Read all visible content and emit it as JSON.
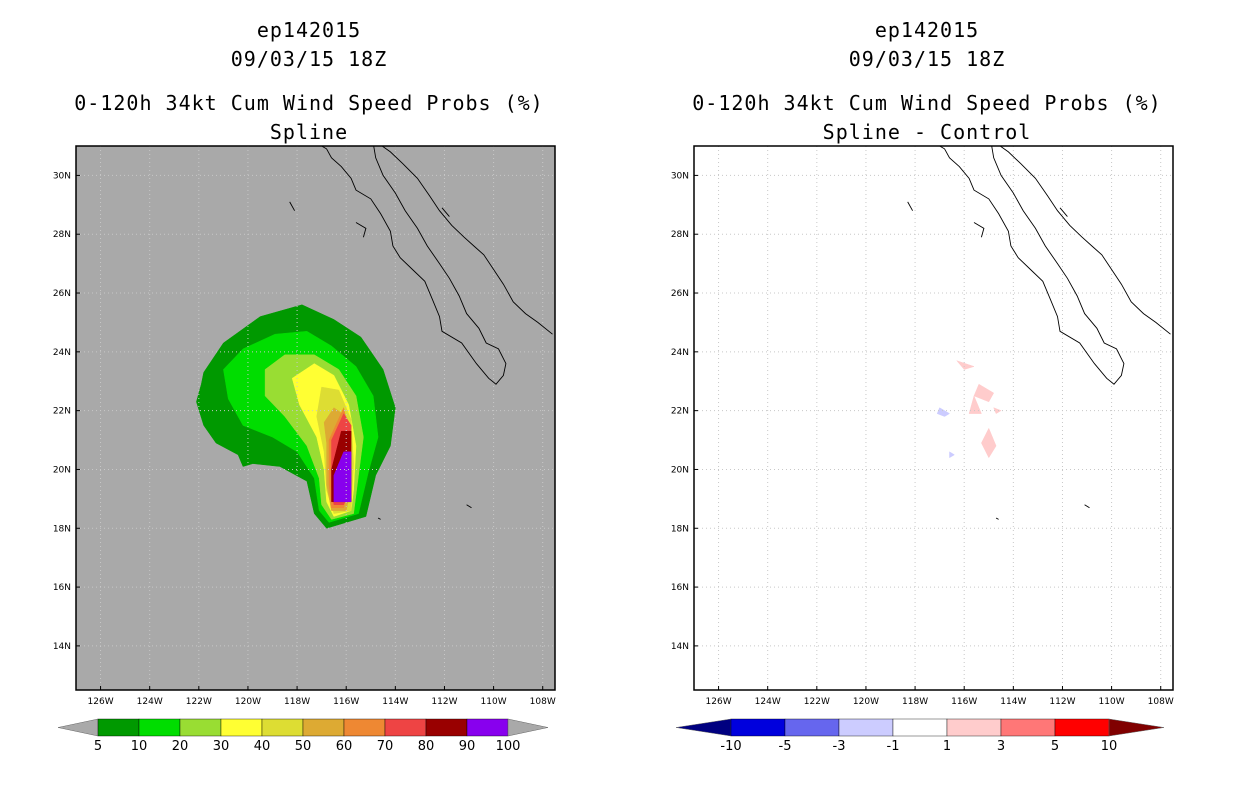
{
  "chart_data": [
    {
      "type": "heatmap",
      "title_lines": [
        "ep142015",
        "09/03/15 18Z",
        "0-120h 34kt Cum Wind Speed Probs (%)",
        "Spline"
      ],
      "x_ticks": [
        "126W",
        "124W",
        "122W",
        "120W",
        "118W",
        "116W",
        "114W",
        "112W",
        "110W",
        "108W"
      ],
      "y_ticks": [
        "30N",
        "28N",
        "26N",
        "24N",
        "22N",
        "20N",
        "18N",
        "16N",
        "14N"
      ],
      "x_range_lon": [
        -127,
        -107.5
      ],
      "y_range_lat": [
        12.5,
        31
      ],
      "background": "#a9a9a9",
      "colorbar": {
        "labels": [
          "5",
          "10",
          "20",
          "30",
          "40",
          "50",
          "60",
          "70",
          "80",
          "90",
          "100"
        ],
        "colors": [
          "#009900",
          "#00dd00",
          "#99dd33",
          "#ffff33",
          "#dddd33",
          "#ddaa33",
          "#ee8833",
          "#ee4444",
          "#990000",
          "#8800ee"
        ],
        "under_color": "#a9a9a9",
        "over_color": "#a9a9a9"
      },
      "contour_levels": [
        {
          "min": 5,
          "color": "#009900",
          "poly": [
            [
              -121.8,
              23.3
            ],
            [
              -121,
              24.3
            ],
            [
              -119.5,
              25.2
            ],
            [
              -117.8,
              25.6
            ],
            [
              -116.5,
              25.1
            ],
            [
              -115.4,
              24.5
            ],
            [
              -114.5,
              23.4
            ],
            [
              -114,
              22.1
            ],
            [
              -114.2,
              20.8
            ],
            [
              -114.8,
              19.8
            ],
            [
              -115.2,
              18.4
            ],
            [
              -116.8,
              18
            ],
            [
              -117.3,
              18.5
            ],
            [
              -117.6,
              19.6
            ],
            [
              -118.7,
              20.1
            ],
            [
              -119.8,
              20.2
            ],
            [
              -120.2,
              20.1
            ],
            [
              -120.4,
              20.5
            ],
            [
              -121.3,
              20.9
            ],
            [
              -121.8,
              21.5
            ],
            [
              -122.1,
              22.3
            ],
            [
              -121.9,
              22.9
            ]
          ]
        },
        {
          "min": 10,
          "color": "#00dd00",
          "poly": [
            [
              -121,
              23.4
            ],
            [
              -120.2,
              24.1
            ],
            [
              -118.9,
              24.6
            ],
            [
              -117.6,
              24.7
            ],
            [
              -116.6,
              24.2
            ],
            [
              -115.6,
              23.5
            ],
            [
              -114.9,
              22.5
            ],
            [
              -114.7,
              21.1
            ],
            [
              -115.1,
              19.9
            ],
            [
              -115.5,
              18.5
            ],
            [
              -116.7,
              18.2
            ],
            [
              -117.1,
              18.6
            ],
            [
              -117.3,
              19.7
            ],
            [
              -118,
              20.6
            ],
            [
              -119,
              21.1
            ],
            [
              -120.2,
              21.5
            ],
            [
              -120.8,
              22.4
            ]
          ]
        },
        {
          "min": 20,
          "color": "#99dd33",
          "poly": [
            [
              -119.3,
              23.4
            ],
            [
              -118.5,
              23.9
            ],
            [
              -117.3,
              23.9
            ],
            [
              -116.3,
              23.4
            ],
            [
              -115.6,
              22.5
            ],
            [
              -115.3,
              21.1
            ],
            [
              -115.5,
              19.8
            ],
            [
              -115.7,
              18.5
            ],
            [
              -116.6,
              18.3
            ],
            [
              -117,
              18.8
            ],
            [
              -117.1,
              19.7
            ],
            [
              -117.6,
              20.8
            ],
            [
              -118.5,
              21.8
            ],
            [
              -119.3,
              22.5
            ]
          ]
        },
        {
          "min": 30,
          "color": "#ffff33",
          "poly": [
            [
              -118.2,
              23.1
            ],
            [
              -117.3,
              23.6
            ],
            [
              -116.5,
              23.2
            ],
            [
              -115.9,
              22.2
            ],
            [
              -115.6,
              20.8
            ],
            [
              -115.7,
              19.3
            ],
            [
              -115.8,
              18.6
            ],
            [
              -116.5,
              18.4
            ],
            [
              -116.8,
              18.9
            ],
            [
              -116.9,
              20
            ],
            [
              -117.2,
              21.1
            ],
            [
              -117.9,
              22.2
            ]
          ]
        },
        {
          "min": 40,
          "color": "#dddd33",
          "poly": [
            [
              -117,
              22.8
            ],
            [
              -116.3,
              22.7
            ],
            [
              -115.8,
              21.7
            ],
            [
              -115.7,
              20.2
            ],
            [
              -115.8,
              18.6
            ],
            [
              -116.5,
              18.5
            ],
            [
              -116.8,
              19.3
            ],
            [
              -116.9,
              20.6
            ],
            [
              -117.2,
              21.8
            ]
          ]
        },
        {
          "min": 50,
          "color": "#ddaa33",
          "poly": [
            [
              -116.5,
              22.1
            ],
            [
              -116,
              21.8
            ],
            [
              -115.8,
              20.9
            ],
            [
              -115.9,
              19
            ],
            [
              -116,
              18.6
            ],
            [
              -116.6,
              18.6
            ],
            [
              -116.8,
              19.5
            ],
            [
              -116.8,
              20.9
            ],
            [
              -116.9,
              21.6
            ]
          ]
        },
        {
          "min": 60,
          "color": "#ee8833",
          "poly": [
            [
              -116.1,
              22.1
            ],
            [
              -115.9,
              21.3
            ],
            [
              -115.9,
              19.5
            ],
            [
              -116.1,
              18.7
            ],
            [
              -116.6,
              18.7
            ],
            [
              -116.7,
              19.5
            ],
            [
              -116.7,
              21
            ]
          ]
        },
        {
          "min": 70,
          "color": "#ee4444",
          "poly": [
            [
              -116.1,
              21.9
            ],
            [
              -115.8,
              21.5
            ],
            [
              -115.9,
              19.2
            ],
            [
              -116.1,
              18.8
            ],
            [
              -116.5,
              18.8
            ],
            [
              -116.6,
              19.4
            ],
            [
              -116.6,
              21
            ]
          ]
        },
        {
          "min": 80,
          "color": "#990000",
          "poly": [
            [
              -116.2,
              21.3
            ],
            [
              -115.8,
              21.3
            ],
            [
              -115.8,
              18.9
            ],
            [
              -116.6,
              18.9
            ],
            [
              -116.6,
              20
            ]
          ]
        },
        {
          "min": 90,
          "color": "#8800ee",
          "poly": [
            [
              -116.1,
              20.6
            ],
            [
              -115.8,
              20.6
            ],
            [
              -115.8,
              18.9
            ],
            [
              -116.5,
              18.9
            ],
            [
              -116.5,
              19.8
            ]
          ]
        }
      ],
      "coastlines": [
        [
          [
            -117.2,
            31.1
          ],
          [
            -116.8,
            30.9
          ],
          [
            -116.6,
            30.6
          ],
          [
            -116.2,
            30.3
          ],
          [
            -115.8,
            29.9
          ],
          [
            -115.6,
            29.5
          ],
          [
            -115,
            29.2
          ],
          [
            -114.6,
            28.7
          ],
          [
            -114.2,
            28.1
          ],
          [
            -114.1,
            27.6
          ],
          [
            -113.8,
            27.2
          ],
          [
            -113.3,
            26.8
          ],
          [
            -112.8,
            26.4
          ],
          [
            -112.5,
            25.8
          ],
          [
            -112.2,
            25.2
          ],
          [
            -112.1,
            24.7
          ],
          [
            -111.3,
            24.3
          ],
          [
            -110.7,
            23.6
          ],
          [
            -110.2,
            23.1
          ],
          [
            -109.9,
            22.9
          ],
          [
            -109.6,
            23.2
          ],
          [
            -109.5,
            23.6
          ],
          [
            -109.8,
            24.1
          ],
          [
            -110.3,
            24.3
          ],
          [
            -110.6,
            24.8
          ],
          [
            -111.1,
            25.3
          ],
          [
            -111.4,
            25.9
          ],
          [
            -111.8,
            26.5
          ],
          [
            -112.2,
            27
          ],
          [
            -112.7,
            27.6
          ],
          [
            -113.1,
            28.2
          ],
          [
            -113.6,
            28.8
          ],
          [
            -114,
            29.4
          ],
          [
            -114.5,
            30
          ],
          [
            -114.8,
            30.6
          ],
          [
            -114.9,
            31.1
          ]
        ],
        [
          [
            -114.7,
            31.1
          ],
          [
            -114.2,
            30.8
          ],
          [
            -113.7,
            30.4
          ],
          [
            -113.1,
            29.9
          ],
          [
            -112.6,
            29.3
          ],
          [
            -112.2,
            28.8
          ],
          [
            -111.7,
            28.3
          ],
          [
            -111.2,
            27.9
          ],
          [
            -110.8,
            27.6
          ],
          [
            -110.4,
            27.3
          ],
          [
            -110,
            26.8
          ],
          [
            -109.6,
            26.3
          ],
          [
            -109.2,
            25.7
          ],
          [
            -108.7,
            25.3
          ],
          [
            -108.2,
            25
          ],
          [
            -107.6,
            24.6
          ]
        ],
        [
          [
            -115.6,
            28.4
          ],
          [
            -115.2,
            28.2
          ],
          [
            -115.3,
            27.9
          ]
        ],
        [
          [
            -118.3,
            29.1
          ],
          [
            -118.1,
            28.8
          ]
        ],
        [
          [
            -112.1,
            28.9
          ],
          [
            -111.8,
            28.6
          ]
        ],
        [
          [
            -111.1,
            18.8
          ],
          [
            -110.9,
            18.7
          ]
        ],
        [
          [
            -114.7,
            18.35
          ],
          [
            -114.6,
            18.3
          ]
        ]
      ]
    },
    {
      "type": "heatmap",
      "title_lines": [
        "ep142015",
        "09/03/15 18Z",
        "0-120h 34kt Cum Wind Speed Probs (%)",
        "Spline - Control"
      ],
      "x_ticks": [
        "126W",
        "124W",
        "122W",
        "120W",
        "118W",
        "116W",
        "114W",
        "112W",
        "110W",
        "108W"
      ],
      "y_ticks": [
        "30N",
        "28N",
        "26N",
        "24N",
        "22N",
        "20N",
        "18N",
        "16N",
        "14N"
      ],
      "x_range_lon": [
        -127,
        -107.5
      ],
      "y_range_lat": [
        12.5,
        31
      ],
      "background": "#ffffff",
      "colorbar": {
        "labels": [
          "-10",
          "-5",
          "-3",
          "-1",
          "1",
          "3",
          "5",
          "10"
        ],
        "colors": [
          "#0000dd",
          "#6666ee",
          "#ccccff",
          "#ffffff",
          "#ffcccc",
          "#ff7777",
          "#ff0000"
        ],
        "under_color": "#000080",
        "over_color": "#800000"
      },
      "anomalies": [
        {
          "value": 2,
          "color": "#ffcccc",
          "poly": [
            [
              -116.3,
              23.7
            ],
            [
              -115.6,
              23.5
            ],
            [
              -116,
              23.4
            ]
          ]
        },
        {
          "value": 2,
          "color": "#ffcccc",
          "poly": [
            [
              -115.4,
              22.9
            ],
            [
              -114.8,
              22.6
            ],
            [
              -115,
              22.3
            ],
            [
              -115.6,
              22.5
            ]
          ]
        },
        {
          "value": 2,
          "color": "#ffcccc",
          "poly": [
            [
              -115.6,
              22.5
            ],
            [
              -115.3,
              21.9
            ],
            [
              -115.8,
              21.9
            ]
          ]
        },
        {
          "value": 2,
          "color": "#ffcccc",
          "poly": [
            [
              -114.8,
              22.1
            ],
            [
              -114.5,
              22
            ],
            [
              -114.7,
              21.9
            ]
          ]
        },
        {
          "value": 2,
          "color": "#ffcccc",
          "poly": [
            [
              -115,
              21.4
            ],
            [
              -114.7,
              20.8
            ],
            [
              -115,
              20.4
            ],
            [
              -115.3,
              20.9
            ]
          ]
        },
        {
          "value": -2,
          "color": "#ccccff",
          "poly": [
            [
              -117,
              22.1
            ],
            [
              -116.6,
              21.9
            ],
            [
              -116.8,
              21.8
            ],
            [
              -117.1,
              21.9
            ]
          ]
        },
        {
          "value": -2,
          "color": "#ccccff",
          "poly": [
            [
              -116.6,
              20.6
            ],
            [
              -116.4,
              20.5
            ],
            [
              -116.6,
              20.4
            ]
          ]
        }
      ]
    }
  ]
}
